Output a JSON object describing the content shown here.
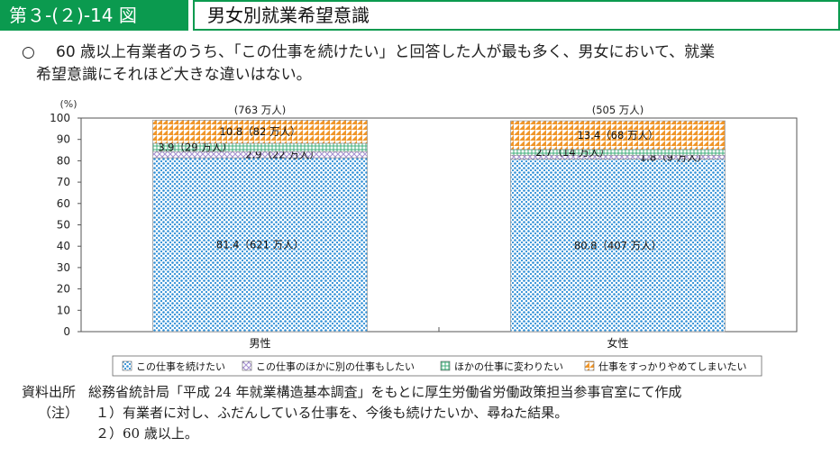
{
  "header": {
    "figure_number": "第３-(２)-14 図",
    "title": "男女別就業希望意識"
  },
  "summary": {
    "bullet": "○",
    "line1": "60 歳以上有業者のうち、「この仕事を続けたい」と回答した人が最も多く、男女において、就業",
    "line2": "希望意識にそれほど大きな違いはない。"
  },
  "chart_data": {
    "type": "bar",
    "stacked": true,
    "y_unit_label": "(%)",
    "ylim": [
      0,
      100
    ],
    "yticks": [
      "0",
      "10",
      "20",
      "30",
      "40",
      "50",
      "60",
      "70",
      "80",
      "90",
      "100"
    ],
    "categories": [
      "男性",
      "女性"
    ],
    "totals": [
      "(763 万人)",
      "(505 万人)"
    ],
    "series": [
      {
        "name": "この仕事を続けたい",
        "values": [
          81.4,
          80.8
        ],
        "labels": [
          "81.4（621 万人）",
          "80.8（407 万人）"
        ],
        "color": "#2f8fd6"
      },
      {
        "name": "この仕事のほかに別の仕事もしたい",
        "values": [
          2.9,
          1.8
        ],
        "labels": [
          "2.9（22 万人）",
          "1.8（9 万人）"
        ],
        "color": "#a48fd0"
      },
      {
        "name": "ほかの仕事に変わりたい",
        "values": [
          3.9,
          2.7
        ],
        "labels": [
          "3.9（29 万人）",
          "2.7（14 万人）"
        ],
        "color": "#3fae7a"
      },
      {
        "name": "仕事をすっかりやめてしまいたい",
        "values": [
          10.8,
          13.4
        ],
        "labels": [
          "10.8（82 万人）",
          "13.4（68 万人）"
        ],
        "color": "#f0962a"
      }
    ],
    "grid": false,
    "legend_position": "bottom"
  },
  "notes": {
    "source_label": "資料出所",
    "source_text": "総務省統計局「平成 24 年就業構造基本調査」をもとに厚生労働省労働政策担当参事官室にて作成",
    "note_label": "（注）",
    "note1": "１）有業者に対し、ふだんしている仕事を、今後も続けたいか、尋ねた結果。",
    "note2": "２）60 歳以上。"
  }
}
